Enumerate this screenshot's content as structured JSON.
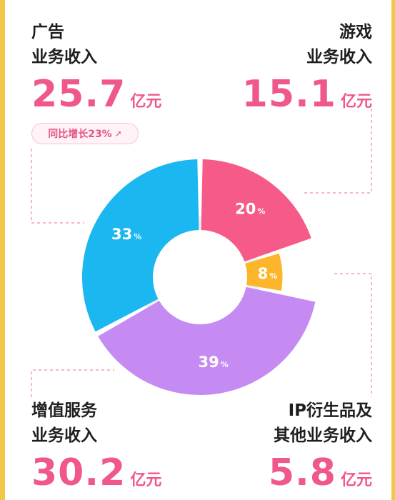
{
  "blocks": {
    "ad": {
      "title1": "广告",
      "title2": "业务收入",
      "amount": "25.7",
      "unit": "亿元",
      "badge": "同比增长23%"
    },
    "game": {
      "title1": "游戏",
      "title2": "业务收入",
      "amount": "15.1",
      "unit": "亿元"
    },
    "vas": {
      "title1": "增值服务",
      "title2": "业务收入",
      "amount": "30.2",
      "unit": "亿元"
    },
    "ip": {
      "title1": "IP衍生品及",
      "title2": "其他业务收入",
      "amount": "5.8",
      "unit": "亿元"
    }
  },
  "chart_data": {
    "type": "pie",
    "donut": true,
    "slices": [
      {
        "label": "游戏业务收入",
        "value": 20,
        "color": "#f65a88"
      },
      {
        "label": "IP衍生品及其他业务收入",
        "value": 8,
        "color": "#fdb62c"
      },
      {
        "label": "增值服务业务收入",
        "value": 39,
        "color": "#c68bf2"
      },
      {
        "label": "广告业务收入",
        "value": 33,
        "color": "#1bb7f0"
      }
    ],
    "labels": [
      {
        "num": "20",
        "pct": "%"
      },
      {
        "num": "8",
        "pct": "%"
      },
      {
        "num": "39",
        "pct": "%"
      },
      {
        "num": "33",
        "pct": "%"
      }
    ],
    "badge_arrow": "➚"
  }
}
